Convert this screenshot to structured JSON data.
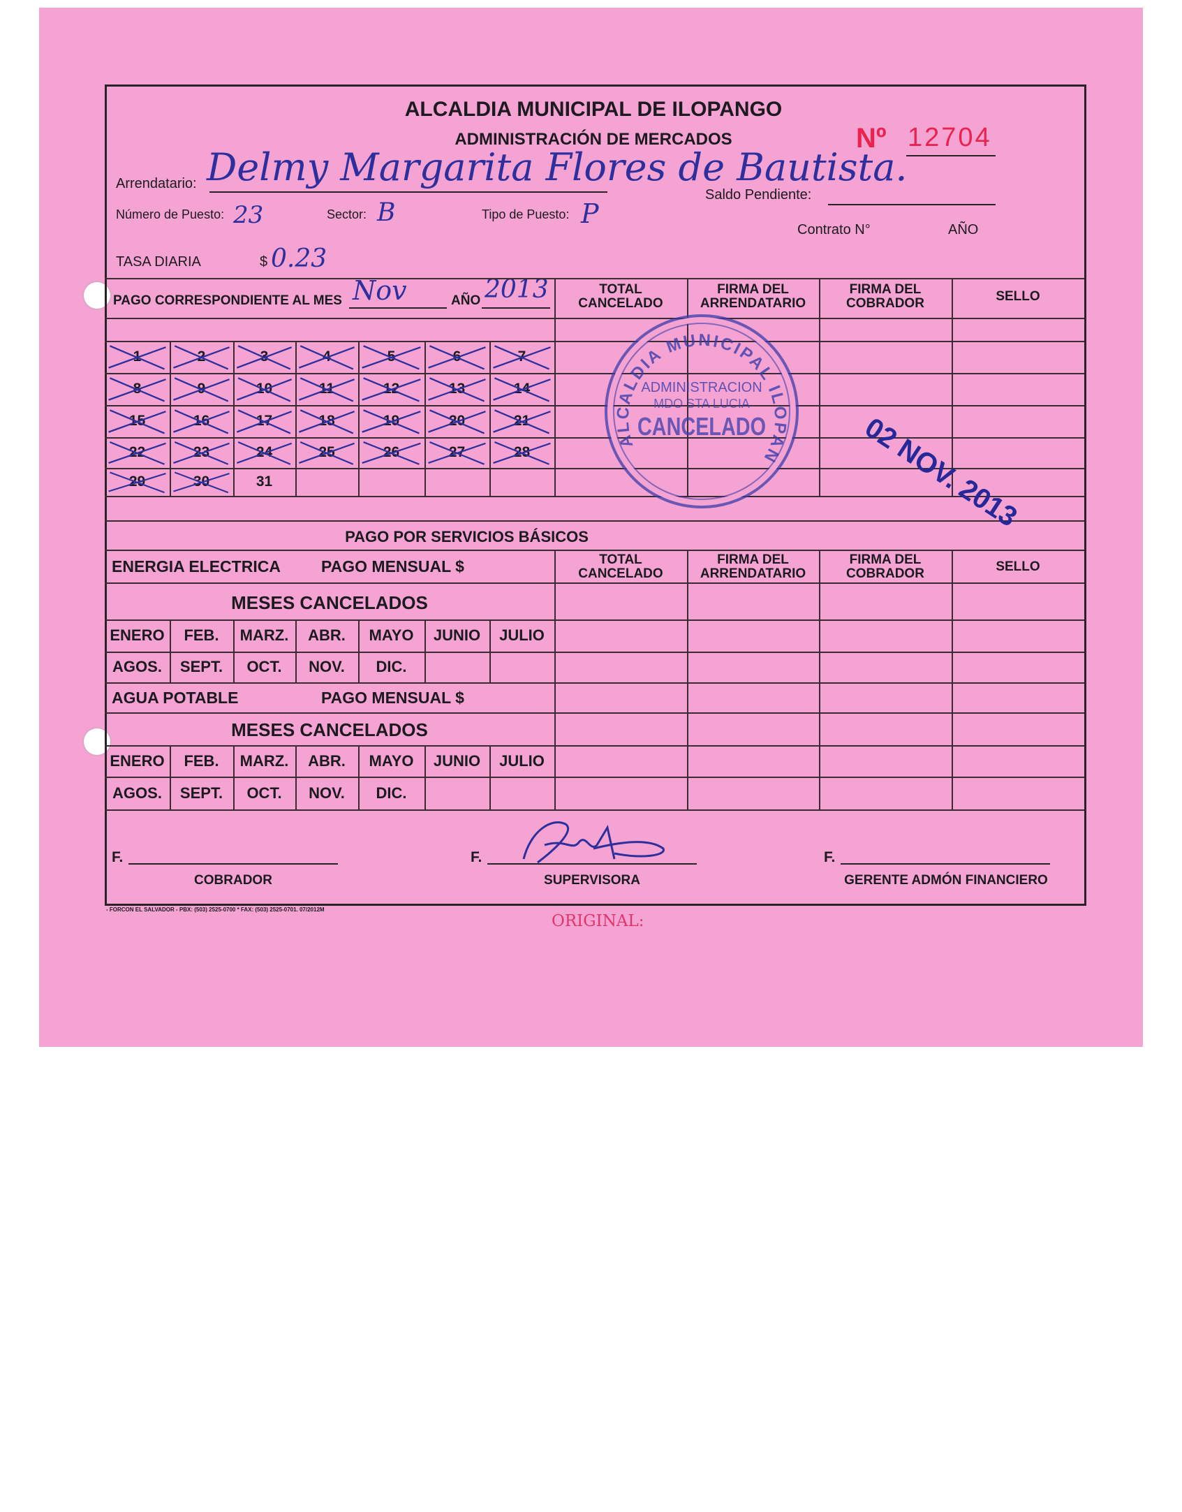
{
  "header": {
    "title": "ALCALDIA MUNICIPAL DE ILOPANGO",
    "subtitle": "ADMINISTRACIÓN DE MERCADOS",
    "number_label": "Nº",
    "number": "12704"
  },
  "fields": {
    "arrendatario_label": "Arrendatario:",
    "arrendatario_value": "Delmy Margarita Flores de Bautista.",
    "puesto_label": "Número de Puesto:",
    "puesto_value": "23",
    "sector_label": "Sector:",
    "sector_value": "B",
    "tipo_label": "Tipo de Puesto:",
    "tipo_value": "P",
    "saldo_label": "Saldo Pendiente:",
    "contrato_label": "Contrato N°",
    "anio_label": "AÑO",
    "tasa_label": "TASA DIARIA",
    "tasa_currency": "$",
    "tasa_value": "0.23"
  },
  "pago_mes": {
    "label": "PAGO CORRESPONDIENTE AL MES",
    "mes_value": "Nov",
    "anio_label": "AÑO",
    "anio_value": "2013",
    "columns": [
      "TOTAL\nCANCELADO",
      "FIRMA DEL\nARRENDATARIO",
      "FIRMA DEL\nCOBRADOR",
      "SELLO"
    ],
    "days": [
      {
        "n": "1",
        "crossed": true
      },
      {
        "n": "2",
        "crossed": true
      },
      {
        "n": "3",
        "crossed": true
      },
      {
        "n": "4",
        "crossed": true
      },
      {
        "n": "5",
        "crossed": true
      },
      {
        "n": "6",
        "crossed": true
      },
      {
        "n": "7",
        "crossed": true
      },
      {
        "n": "8",
        "crossed": true
      },
      {
        "n": "9",
        "crossed": true
      },
      {
        "n": "10",
        "crossed": true
      },
      {
        "n": "11",
        "crossed": true
      },
      {
        "n": "12",
        "crossed": true
      },
      {
        "n": "13",
        "crossed": true
      },
      {
        "n": "14",
        "crossed": true
      },
      {
        "n": "15",
        "crossed": true
      },
      {
        "n": "16",
        "crossed": true
      },
      {
        "n": "17",
        "crossed": true
      },
      {
        "n": "18",
        "crossed": true
      },
      {
        "n": "19",
        "crossed": true
      },
      {
        "n": "20",
        "crossed": true
      },
      {
        "n": "21",
        "crossed": true
      },
      {
        "n": "22",
        "crossed": true
      },
      {
        "n": "23",
        "crossed": true
      },
      {
        "n": "24",
        "crossed": true
      },
      {
        "n": "25",
        "crossed": true
      },
      {
        "n": "26",
        "crossed": true
      },
      {
        "n": "27",
        "crossed": true
      },
      {
        "n": "28",
        "crossed": true
      },
      {
        "n": "29",
        "crossed": true
      },
      {
        "n": "30",
        "crossed": true
      },
      {
        "n": "31",
        "crossed": false
      }
    ]
  },
  "stamp": {
    "ring_text": "ALCALDIA MUNICIPAL ILOPANGO",
    "line1": "ADMINISTRACION",
    "line2": "MDO STA LUCIA",
    "line3": "CANCELADO",
    "date": "02 NOV. 2013"
  },
  "servicios": {
    "title": "PAGO POR SERVICIOS BÁSICOS",
    "energia_label": "ENERGIA ELECTRICA",
    "agua_label": "AGUA POTABLE",
    "pago_mensual": "PAGO MENSUAL $",
    "meses_cancelados": "MESES CANCELADOS",
    "columns": [
      "TOTAL\nCANCELADO",
      "FIRMA DEL\nARRENDATARIO",
      "FIRMA DEL\nCOBRADOR",
      "SELLO"
    ],
    "months_row1": [
      "ENERO",
      "FEB.",
      "MARZ.",
      "ABR.",
      "MAYO",
      "JUNIO",
      "JULIO"
    ],
    "months_row2": [
      "AGOS.",
      "SEPT.",
      "OCT.",
      "NOV.",
      "DIC.",
      "",
      ""
    ]
  },
  "signatures": {
    "prefix": "F.",
    "cobrador": "COBRADOR",
    "supervisora": "SUPERVISORA",
    "gerente": "GERENTE ADMÓN FINANCIERO"
  },
  "footer": {
    "printer": "- FORCON EL SALVADOR - PBX: (503) 2525-0700 * FAX: (503) 2525-0701. 07/2012M",
    "copy_label": "ORIGINAL:"
  },
  "colors": {
    "paper": "#f4a3d3",
    "ink": "#2d2f9c",
    "number_red": "#e8234f"
  }
}
